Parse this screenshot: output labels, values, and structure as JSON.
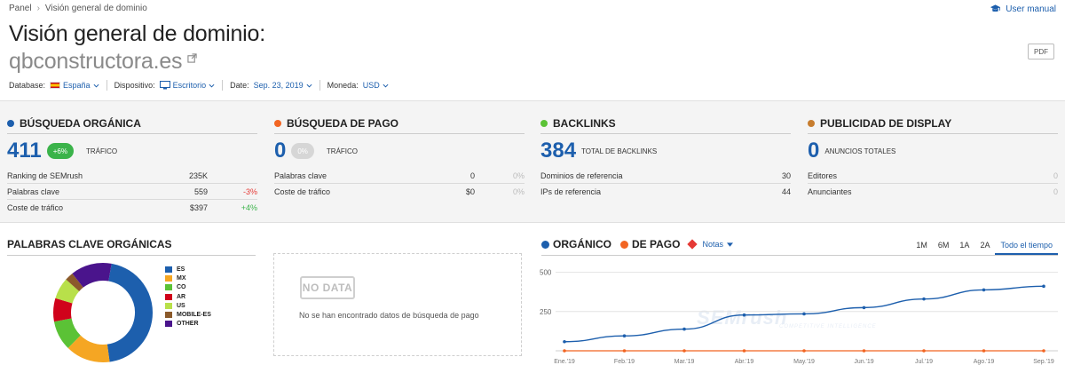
{
  "breadcrumb": {
    "root": "Panel",
    "current": "Visión general de dominio"
  },
  "user_manual": "User manual",
  "title": "Visión general de dominio:",
  "domain": "qbconstructora.es",
  "pdf_label": "PDF",
  "filters": {
    "database": {
      "label": "Database:",
      "value": "España"
    },
    "device": {
      "label": "Dispositivo:",
      "value": "Escritorio"
    },
    "date": {
      "label": "Date:",
      "value": "Sep. 23, 2019"
    },
    "currency": {
      "label": "Moneda:",
      "value": "USD"
    }
  },
  "colors": {
    "organic": "#1d5fad",
    "paid": "#f26522",
    "backlinks": "#5bc236",
    "display": "#c77d2e",
    "positive": "#3bb34a",
    "negative": "#e53935"
  },
  "cards": {
    "organic": {
      "title": "BÚSQUEDA ORGÁNICA",
      "value": "411",
      "badge": "+6%",
      "value_label": "TRÁFICO",
      "rows": [
        {
          "label": "Ranking de SEMrush",
          "value": "235K",
          "delta": ""
        },
        {
          "label": "Palabras clave",
          "value": "559",
          "delta": "-3%"
        },
        {
          "label": "Coste de tráfico",
          "value": "$397",
          "delta": "+4%"
        }
      ]
    },
    "paid": {
      "title": "BÚSQUEDA DE PAGO",
      "value": "0",
      "badge": "0%",
      "value_label": "TRÁFICO",
      "rows": [
        {
          "label": "Palabras clave",
          "value": "0",
          "delta": "0%"
        },
        {
          "label": "Coste de tráfico",
          "value": "$0",
          "delta": "0%"
        }
      ]
    },
    "backlinks": {
      "title": "BACKLINKS",
      "value": "384",
      "value_label": "TOTAL DE BACKLINKS",
      "rows": [
        {
          "label": "Dominios de referencia",
          "value": "30"
        },
        {
          "label": "IPs de referencia",
          "value": "44"
        }
      ]
    },
    "display": {
      "title": "PUBLICIDAD DE DISPLAY",
      "value": "0",
      "value_label": "ANUNCIOS TOTALES",
      "rows": [
        {
          "label": "Editores",
          "value": "0"
        },
        {
          "label": "Anunciantes",
          "value": "0"
        }
      ]
    }
  },
  "organic_keywords": {
    "title": "PALABRAS CLAVE ORGÁNICAS",
    "legend": [
      {
        "name": "ES",
        "color": "#1d5fad"
      },
      {
        "name": "MX",
        "color": "#f5a623"
      },
      {
        "name": "CO",
        "color": "#5bc236"
      },
      {
        "name": "AR",
        "color": "#d0021b"
      },
      {
        "name": "US",
        "color": "#b8e04a"
      },
      {
        "name": "MOBILE-ES",
        "color": "#8b5a2b"
      },
      {
        "name": "OTHER",
        "color": "#4a148c"
      }
    ]
  },
  "paid_empty": {
    "badge": "NO DATA",
    "message": "No se han encontrado datos de búsqueda de pago"
  },
  "chart_head": {
    "organic_label": "ORGÁNICO",
    "paid_label": "DE PAGO",
    "notes_label": "Notas"
  },
  "periods": [
    "1M",
    "6M",
    "1A",
    "2A",
    "Todo el tiempo"
  ],
  "active_period": "Todo el tiempo",
  "watermark": {
    "brand": "SEMrush",
    "sub": "COMPETITIVE INTELLIGENCE"
  },
  "chart_data": {
    "type": "line",
    "categories": [
      "Ene.'19",
      "Feb.'19",
      "Mar.'19",
      "Abr.'19",
      "May.'19",
      "Jun.'19",
      "Jul.'19",
      "Ago.'19",
      "Sep.'19"
    ],
    "series": [
      {
        "name": "ORGÁNICO",
        "color": "#1d5fad",
        "values": [
          58,
          95,
          138,
          228,
          235,
          275,
          330,
          388,
          411
        ]
      },
      {
        "name": "DE PAGO",
        "color": "#f26522",
        "values": [
          0,
          0,
          0,
          0,
          0,
          0,
          0,
          0,
          0
        ]
      }
    ],
    "yticks": [
      250,
      500
    ],
    "ylim": [
      0,
      560
    ],
    "grid": true
  }
}
